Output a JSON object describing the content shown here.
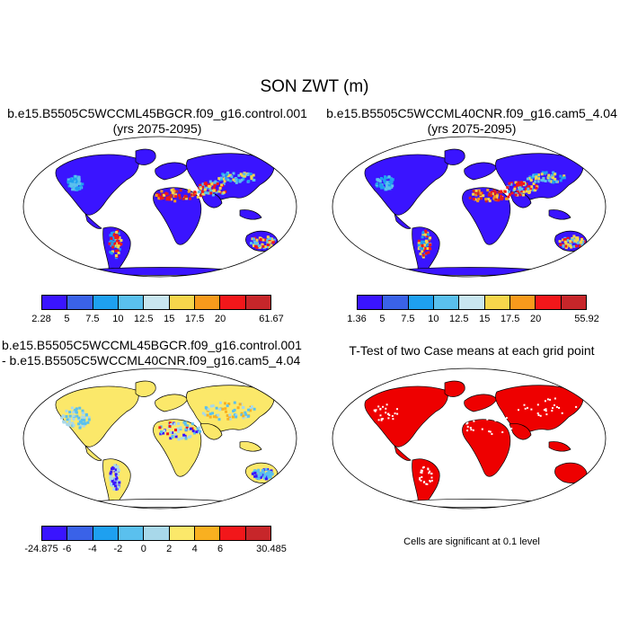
{
  "title": "SON ZWT (m)",
  "panels": [
    {
      "id": "top-left",
      "title_lines": [
        "b.e15.B5505C5WCCML45BGCR.f09_g16.control.001",
        "(yrs 2075-2095)"
      ]
    },
    {
      "id": "top-right",
      "title_lines": [
        "b.e15.B5505C5WCCML40CNR.f09_g16.cam5_4.04",
        "(yrs 2075-2095)"
      ]
    },
    {
      "id": "bottom-left",
      "title_lines": [
        "b.e15.B5505C5WCCML45BGCR.f09_g16.control.001",
        "- b.e15.B5505C5WCCML40CNR.f09_g16.cam5_4.04"
      ]
    },
    {
      "id": "bottom-right",
      "title_lines": [
        "T-Test of two Case means at each grid point"
      ]
    }
  ],
  "colorbars": [
    {
      "colors": [
        "#3a14ff",
        "#3a62e8",
        "#1ea0f0",
        "#5ac0ee",
        "#c8e6f0",
        "#f6d64c",
        "#f79a1c",
        "#f2171a",
        "#c7262a"
      ],
      "labels": [
        "2.28",
        "5",
        "7.5",
        "10",
        "12.5",
        "15",
        "17.5",
        "20",
        "61.67"
      ]
    },
    {
      "colors": [
        "#3a14ff",
        "#3a62e8",
        "#1ea0f0",
        "#5ac0ee",
        "#c8e6f0",
        "#f6d64c",
        "#f79a1c",
        "#f2171a",
        "#c7262a"
      ],
      "labels": [
        "1.36",
        "5",
        "7.5",
        "10",
        "12.5",
        "15",
        "17.5",
        "20",
        "55.92"
      ]
    },
    {
      "colors": [
        "#3a14ff",
        "#3a62e8",
        "#1ea0f0",
        "#5ac0ee",
        "#a8d8ea",
        "#fbe86a",
        "#f9b020",
        "#f2171a",
        "#c7262a"
      ],
      "labels": [
        "-24.875",
        "-6",
        "-4",
        "-2",
        "0",
        "2",
        "4",
        "6",
        "30.485"
      ]
    }
  ],
  "footnote": "Cells are significant at 0.1 level",
  "fill_colors": {
    "zwt_base": "#3a14ff",
    "diff_base": "#fbe86a",
    "ttest": "#ee0000",
    "outline": "#000000"
  }
}
